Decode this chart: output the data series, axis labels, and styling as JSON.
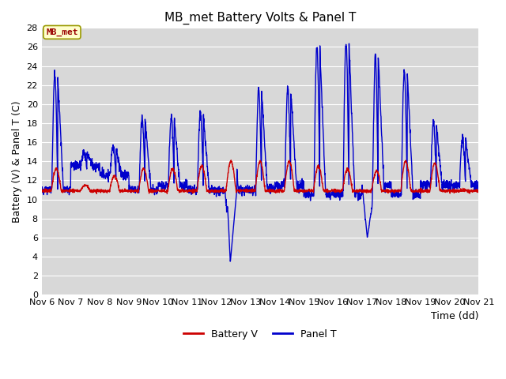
{
  "title": "MB_met Battery Volts & Panel T",
  "ylabel": "Battery (V) & Panel T (C)",
  "xlabel": "Time (dd)",
  "ylim": [
    0,
    28
  ],
  "yticks": [
    0,
    2,
    4,
    6,
    8,
    10,
    12,
    14,
    16,
    18,
    20,
    22,
    24,
    26,
    28
  ],
  "xtick_labels": [
    "Nov 6",
    "Nov 7",
    "Nov 8",
    "Nov 9",
    "Nov 10",
    "Nov 11",
    "Nov 12",
    "Nov 13",
    "Nov 14",
    "Nov 15",
    "Nov 16",
    "Nov 17",
    "Nov 18",
    "Nov 19",
    "Nov 20",
    "Nov 21"
  ],
  "battery_color": "#cc0000",
  "panel_color": "#0000cc",
  "fig_bg_color": "#ffffff",
  "plot_bg_color": "#d8d8d8",
  "station_label": "MB_met",
  "station_label_fg": "#990000",
  "station_box_face": "#ffffcc",
  "station_box_edge": "#999900",
  "title_fontsize": 11,
  "axis_fontsize": 9,
  "tick_fontsize": 8,
  "legend_fontsize": 9,
  "line_width": 1.0
}
